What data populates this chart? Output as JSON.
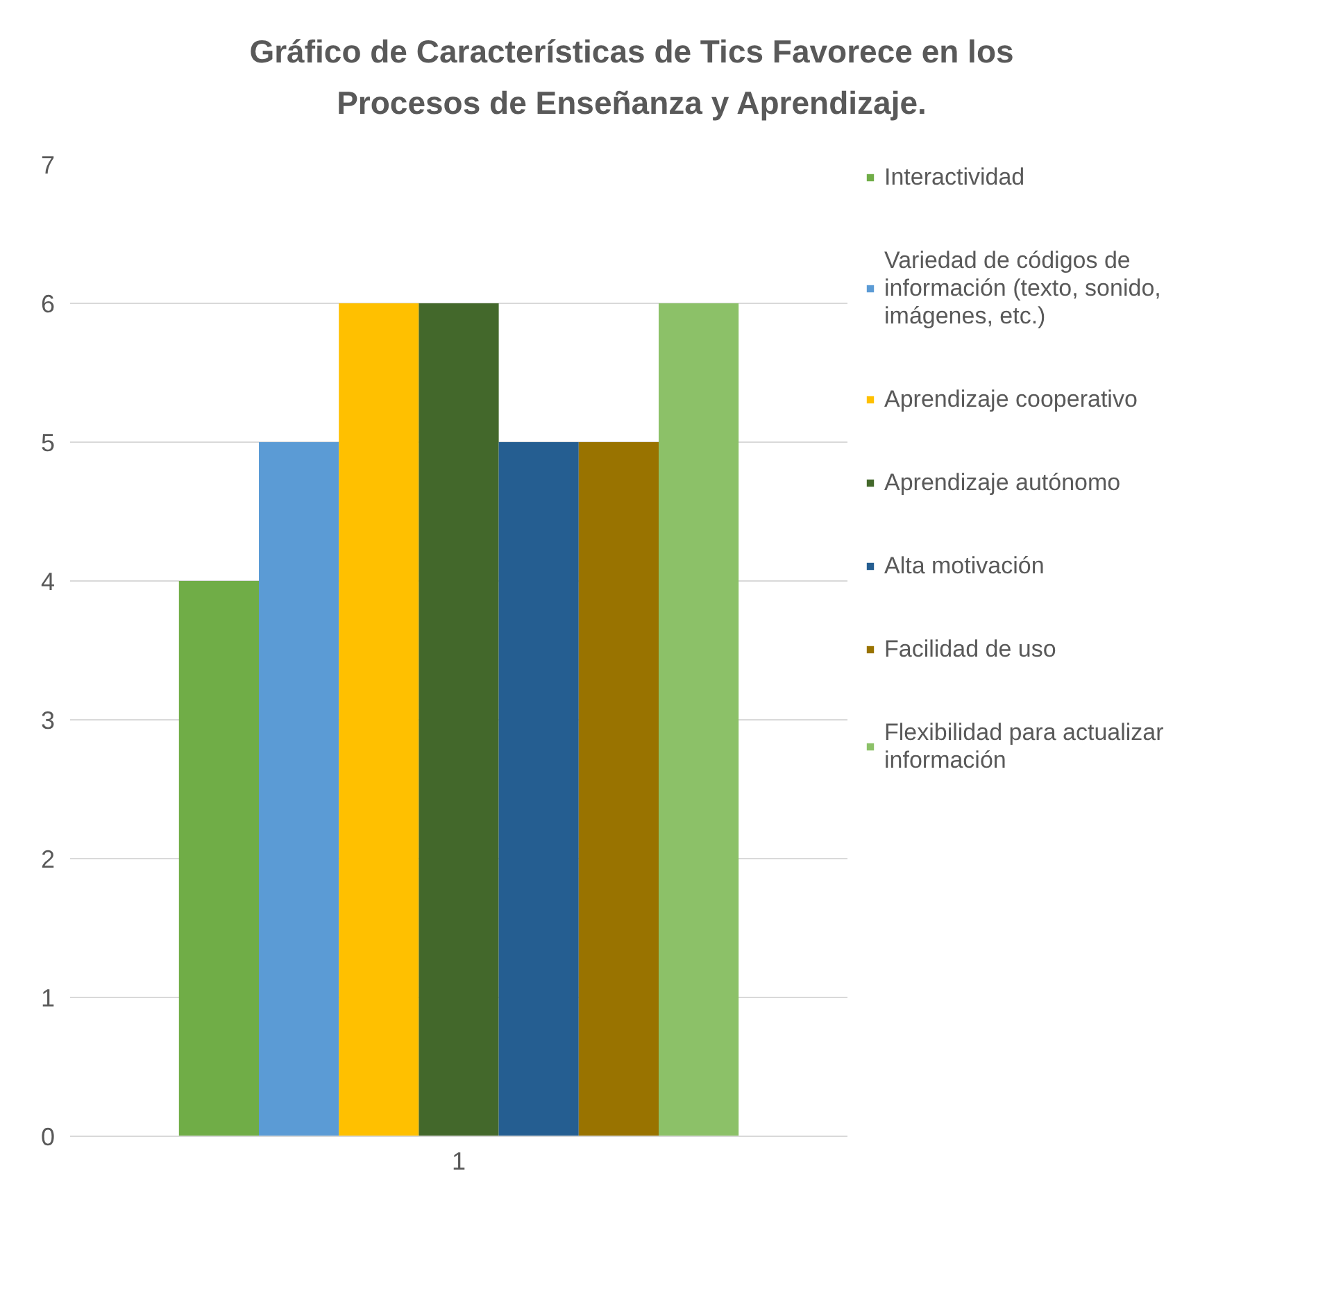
{
  "chart_data": {
    "type": "bar",
    "title": "Gráfico de Características de Tics Favorece en los Procesos de Enseñanza y Aprendizaje.",
    "categories": [
      "1"
    ],
    "series": [
      {
        "name": "Interactividad",
        "color": "#70ad47",
        "values": [
          4
        ]
      },
      {
        "name": "Variedad de códigos de información (texto, sonido, imágenes, etc.)",
        "color": "#5b9bd5",
        "values": [
          5
        ]
      },
      {
        "name": "Aprendizaje cooperativo",
        "color": "#ffc000",
        "values": [
          6
        ]
      },
      {
        "name": "Aprendizaje autónomo",
        "color": "#43682b",
        "values": [
          6
        ]
      },
      {
        "name": "Alta motivación",
        "color": "#255e91",
        "values": [
          5
        ]
      },
      {
        "name": "Facilidad de uso",
        "color": "#997300",
        "values": [
          5
        ]
      },
      {
        "name": "Flexibilidad para actualizar información",
        "color": "#8cc168",
        "values": [
          6
        ]
      }
    ],
    "ylim": [
      0,
      7
    ],
    "yticks": [
      0,
      1,
      2,
      3,
      4,
      5,
      6,
      7
    ],
    "grid": "y",
    "legend": "right"
  }
}
